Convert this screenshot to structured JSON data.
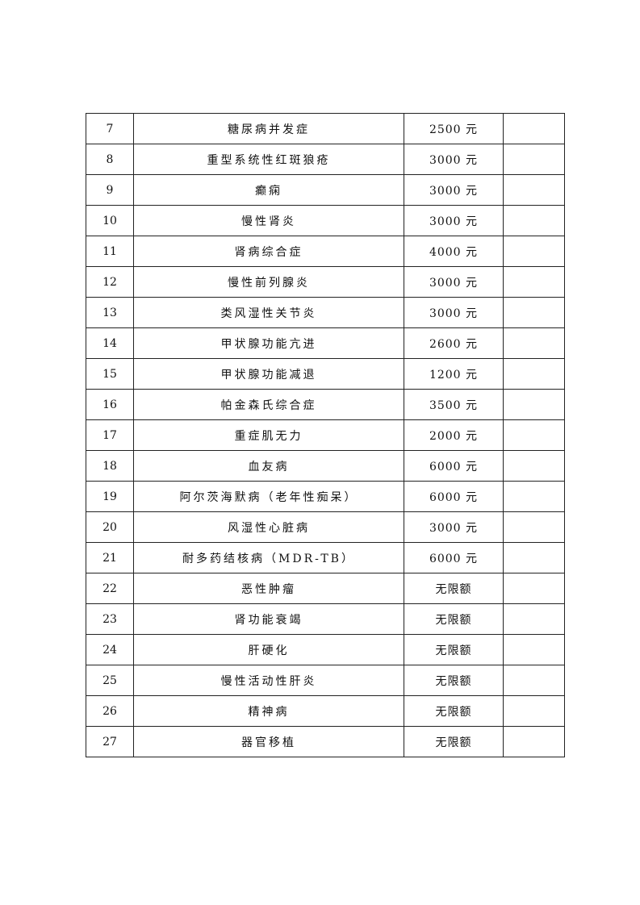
{
  "rows": [
    {
      "no": "7",
      "name": "糖尿病并发症",
      "amount": "2500 元",
      "note": ""
    },
    {
      "no": "8",
      "name": "重型系统性红斑狼疮",
      "amount": "3000 元",
      "note": ""
    },
    {
      "no": "9",
      "name": "癫痫",
      "amount": "3000 元",
      "note": ""
    },
    {
      "no": "10",
      "name": "慢性肾炎",
      "amount": "3000 元",
      "note": ""
    },
    {
      "no": "11",
      "name": "肾病综合症",
      "amount": "4000 元",
      "note": ""
    },
    {
      "no": "12",
      "name": "慢性前列腺炎",
      "amount": "3000 元",
      "note": ""
    },
    {
      "no": "13",
      "name": "类风湿性关节炎",
      "amount": "3000 元",
      "note": ""
    },
    {
      "no": "14",
      "name": "甲状腺功能亢进",
      "amount": "2600 元",
      "note": ""
    },
    {
      "no": "15",
      "name": "甲状腺功能减退",
      "amount": "1200 元",
      "note": ""
    },
    {
      "no": "16",
      "name": "帕金森氏综合症",
      "amount": "3500 元",
      "note": ""
    },
    {
      "no": "17",
      "name": "重症肌无力",
      "amount": "2000 元",
      "note": ""
    },
    {
      "no": "18",
      "name": "血友病",
      "amount": "6000 元",
      "note": ""
    },
    {
      "no": "19",
      "name": "阿尔茨海默病（老年性痴呆）",
      "amount": "6000 元",
      "note": ""
    },
    {
      "no": "20",
      "name": "风湿性心脏病",
      "amount": "3000 元",
      "note": ""
    },
    {
      "no": "21",
      "name": "耐多药结核病（MDR-TB）",
      "amount": "6000 元",
      "note": ""
    },
    {
      "no": "22",
      "name": "恶性肿瘤",
      "amount": "无限额",
      "note": ""
    },
    {
      "no": "23",
      "name": "肾功能衰竭",
      "amount": "无限额",
      "note": ""
    },
    {
      "no": "24",
      "name": "肝硬化",
      "amount": "无限额",
      "note": ""
    },
    {
      "no": "25",
      "name": "慢性活动性肝炎",
      "amount": "无限额",
      "note": ""
    },
    {
      "no": "26",
      "name": "精神病",
      "amount": "无限额",
      "note": ""
    },
    {
      "no": "27",
      "name": "器官移植",
      "amount": "无限额",
      "note": ""
    }
  ]
}
